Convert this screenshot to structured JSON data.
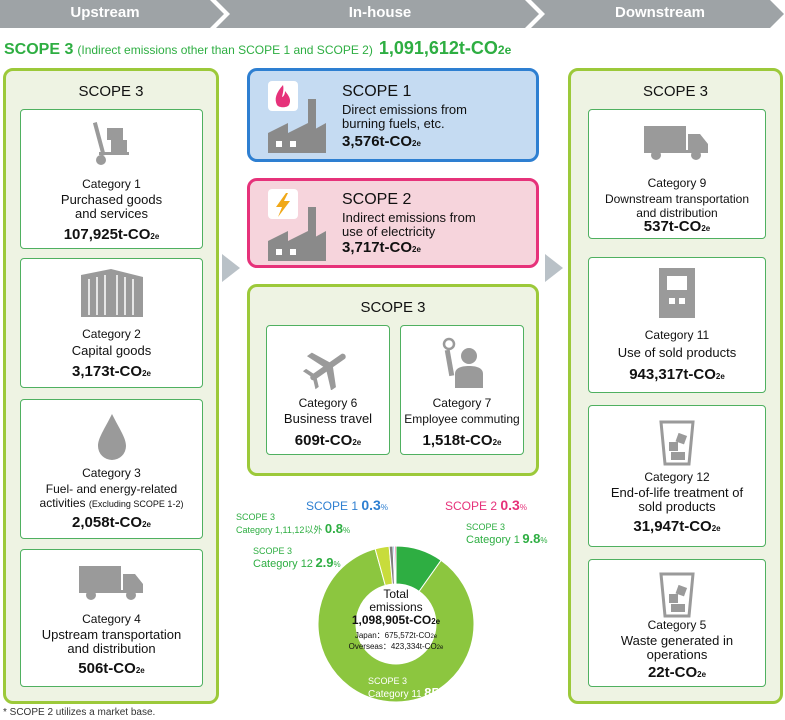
{
  "stages": {
    "upstream": "Upstream",
    "inhouse": "In-house",
    "downstream": "Downstream"
  },
  "header": {
    "scope": "SCOPE 3",
    "desc": "(Indirect emissions other than SCOPE 1 and SCOPE 2)",
    "total": "1,091,612t-CO",
    "total_sub": "2e"
  },
  "upstream": {
    "title": "SCOPE 3",
    "cards": [
      {
        "cat": "Category 1",
        "name1": "Purchased goods",
        "name2": "and services",
        "value": "107,925t-CO",
        "icon": "hand-truck-icon"
      },
      {
        "cat": "Category 2",
        "name1": "Capital goods",
        "name2": "",
        "value": "3,173t-CO",
        "icon": "building-icon"
      },
      {
        "cat": "Category 3",
        "name1": "Fuel- and energy-related",
        "name2": "activities",
        "note": "(Excluding SCOPE 1-2)",
        "value": "2,058t-CO",
        "icon": "drop-icon"
      },
      {
        "cat": "Category 4",
        "name1": "Upstream transportation",
        "name2": "and distribution",
        "value": "506t-CO",
        "icon": "truck-icon"
      }
    ]
  },
  "inhouse": {
    "scope1": {
      "title": "SCOPE 1",
      "desc1": "Direct emissions from",
      "desc2": "burning fuels, etc.",
      "value": "3,576t-CO"
    },
    "scope2": {
      "title": "SCOPE 2",
      "desc1": "Indirect emissions from",
      "desc2": "use of electricity",
      "value": "3,717t-CO"
    },
    "scope3": {
      "title": "SCOPE 3",
      "cards": [
        {
          "cat": "Category 6",
          "name": "Business travel",
          "value": "609t-CO",
          "icon": "airplane-icon"
        },
        {
          "cat": "Category 7",
          "name": "Employee commuting",
          "value": "1,518t-CO",
          "icon": "commuter-icon"
        }
      ]
    }
  },
  "downstream": {
    "title": "SCOPE 3",
    "cards": [
      {
        "cat": "Category 9",
        "name1": "Downstream transportation",
        "name2": "and distribution",
        "value": "537t-CO",
        "icon": "truck-icon"
      },
      {
        "cat": "Category 11",
        "name1": "Use of sold products",
        "name2": "",
        "value": "943,317t-CO",
        "icon": "machine-icon"
      },
      {
        "cat": "Category 12",
        "name1": "End-of-life treatment of",
        "name2": "sold products",
        "value": "31,947t-CO",
        "icon": "bin-icon"
      },
      {
        "cat": "Category 5",
        "name1": "Waste generated in",
        "name2": "operations",
        "value": "22t-CO",
        "icon": "bin-icon"
      }
    ]
  },
  "co2_suffix": "2e",
  "chart_data": {
    "type": "pie",
    "center_title": "Total",
    "center_subtitle": "emissions",
    "center_value": "1,098,905t-CO",
    "center_note1": "Japan：675,572t-CO",
    "center_note2": "Overseas：423,334t-CO",
    "segments": [
      {
        "label": "SCOPE 3 Category 11",
        "value": 85.8,
        "color": "#8cc63f"
      },
      {
        "label": "SCOPE 3 Category 12",
        "value": 2.9,
        "color": "#c8dc3c"
      },
      {
        "label": "SCOPE 3 Category 1,11,12以外",
        "value": 0.8,
        "color": "#7f7f7f"
      },
      {
        "label": "SCOPE 1",
        "value": 0.3,
        "color": "#3d8ed6"
      },
      {
        "label": "SCOPE 2",
        "value": 0.3,
        "color": "#e6327a"
      },
      {
        "label": "SCOPE 3 Category 1",
        "value": 9.8,
        "color": "#2eae42"
      }
    ],
    "labels": {
      "s1": "SCOPE 1",
      "s1v": "0.3",
      "s2": "SCOPE 2",
      "s2v": "0.3",
      "other_a": "SCOPE 3",
      "other_b": "Category 1,11,12以外",
      "otherv": "0.8",
      "c12a": "SCOPE 3",
      "c12b": "Category 12",
      "c12v": "2.9",
      "c1a": "SCOPE 3",
      "c1b": "Category 1",
      "c1v": "9.8",
      "c11a": "SCOPE 3",
      "c11b": "Category 11",
      "c11v": "85.8",
      "pct": "%"
    }
  },
  "footnote": "* SCOPE 2 utilizes a market base."
}
